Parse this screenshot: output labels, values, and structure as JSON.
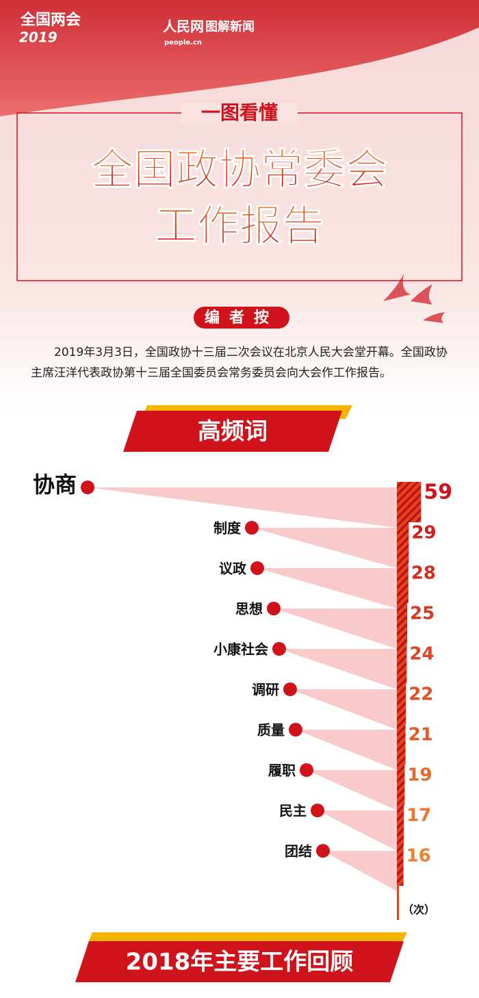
{
  "header": {
    "event_logo": "全国两会",
    "event_year": "2019",
    "brand": "人民网",
    "brand_url": "people.cn",
    "column": "图解新闻",
    "kicker": "一图看懂",
    "title_line1": "全国政协常委会",
    "title_line2": "工作报告",
    "note_label": "编者按",
    "note_text": "2019年3月3日，全国政协十三届二次会议在北京人民大会堂开幕。全国政协主席汪洋代表政协第十三届全国委员会常务委员会向大会作工作报告。"
  },
  "chart_data": {
    "type": "bar",
    "title": "高频词",
    "categories": [
      "协商",
      "制度",
      "议政",
      "思想",
      "小康社会",
      "调研",
      "质量",
      "履职",
      "民主",
      "团结"
    ],
    "values": [
      59,
      29,
      28,
      25,
      24,
      22,
      21,
      19,
      17,
      16
    ],
    "unit_label": "（次）",
    "color": "#d0121b"
  },
  "footer": {
    "section_title": "2018年主要工作回顾"
  }
}
